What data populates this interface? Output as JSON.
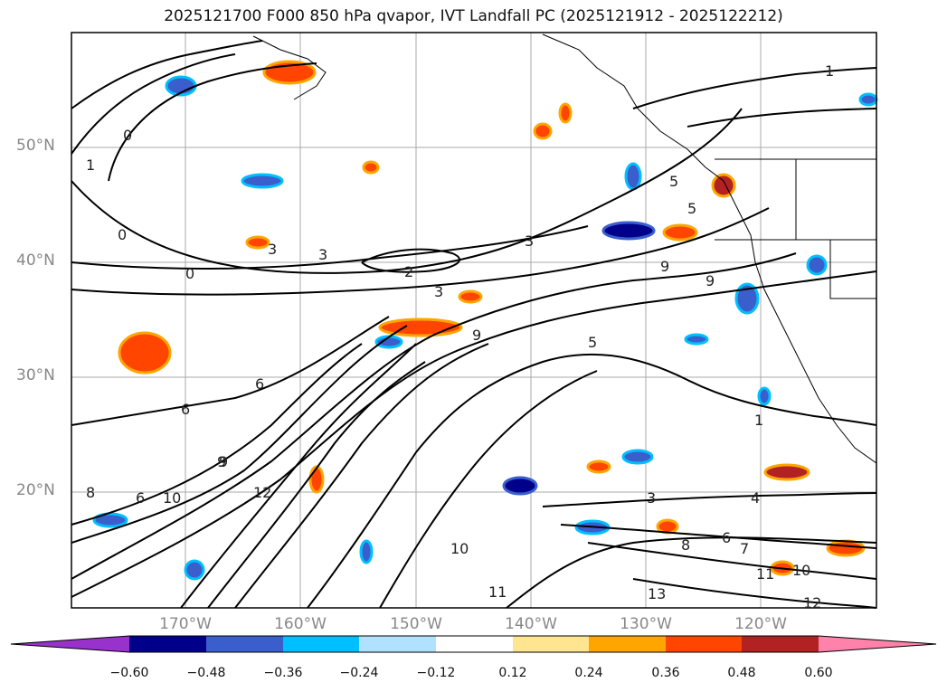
{
  "title": "2025121700 F000 850 hPa qvapor, IVT Landfall PC (2025121912 - 2025122212)",
  "map": {
    "lat_labels": [
      "50°N",
      "40°N",
      "30°N",
      "20°N"
    ],
    "lon_labels": [
      "170°W",
      "160°W",
      "150°W",
      "140°W",
      "130°W",
      "120°W"
    ],
    "contour_labels": [
      "1",
      "0",
      "1",
      "0",
      "0",
      "3",
      "3",
      "3",
      "2",
      "3",
      "9",
      "9",
      "9",
      "5",
      "5",
      "6",
      "6",
      "9",
      "3",
      "4",
      "6",
      "7",
      "8",
      "10",
      "11",
      "12",
      "13",
      "1",
      "5",
      "10",
      "6",
      "12",
      "10",
      "11",
      "8",
      "9"
    ]
  },
  "colorbar": {
    "ticks": [
      "−0.60",
      "−0.48",
      "−0.36",
      "−0.24",
      "−0.12",
      "0.12",
      "0.24",
      "0.36",
      "0.48",
      "0.60"
    ],
    "colors": [
      "#9932cc",
      "#00008b",
      "#3a5fcd",
      "#00bfff",
      "#b0e2ff",
      "#ffffff",
      "#ffe58f",
      "#ffa500",
      "#ff4500",
      "#b22222",
      "#ff82ab"
    ]
  }
}
